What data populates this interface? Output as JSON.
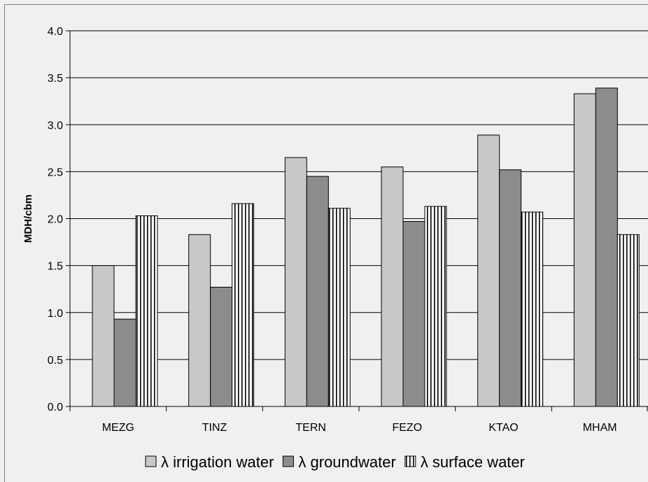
{
  "chart_data": {
    "type": "bar",
    "title": "",
    "xlabel": "",
    "ylabel": "MDH/cbm",
    "categories": [
      "MEZG",
      "TINZ",
      "TERN",
      "FEZO",
      "KTAO",
      "MHAM"
    ],
    "series": [
      {
        "name": "λ irrigation water",
        "values": [
          1.5,
          1.83,
          2.65,
          2.55,
          2.89,
          3.33
        ],
        "color": "#c8c8c8",
        "pattern": "solid"
      },
      {
        "name": "λ groundwater",
        "values": [
          0.93,
          1.27,
          2.45,
          1.97,
          2.52,
          3.39
        ],
        "color": "#8c8c8c",
        "pattern": "solid"
      },
      {
        "name": "λ surface water",
        "values": [
          2.03,
          2.16,
          2.11,
          2.13,
          2.07,
          1.83
        ],
        "color": "#ffffff",
        "pattern": "vertical-stripes"
      }
    ],
    "ylim": [
      0,
      4.0
    ],
    "yticks": [
      "0.0",
      "0.5",
      "1.0",
      "1.5",
      "2.0",
      "2.5",
      "3.0",
      "3.5",
      "4.0"
    ],
    "grid": true,
    "legend_position": "bottom"
  }
}
